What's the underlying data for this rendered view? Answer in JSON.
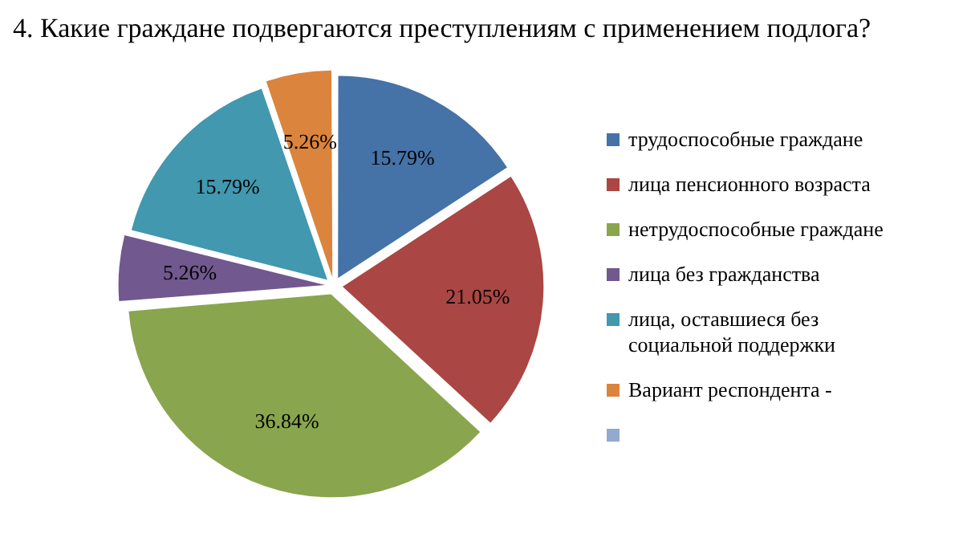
{
  "chart_data": {
    "type": "pie",
    "title": "4. Какие граждане подвергаются преступлениям с применением подлога?",
    "categories": [
      "трудоспособные граждане",
      "лица пенсионного возраста",
      "нетрудоспособные граждане",
      "лица без гражданства",
      "лица, оставшиеся без социальной поддержки",
      "Вариант респондента -",
      null
    ],
    "values": [
      15.79,
      21.05,
      36.84,
      5.26,
      15.79,
      5.26,
      0
    ],
    "colors": [
      "#4572a7",
      "#aa4643",
      "#89a54e",
      "#71588f",
      "#4198af",
      "#db843d",
      "#93a9cf"
    ],
    "value_labels": [
      "15.79%",
      "21.05%",
      "36.84%",
      "5.26%",
      "15.79%",
      "5.26%",
      null
    ],
    "legend": "right"
  }
}
